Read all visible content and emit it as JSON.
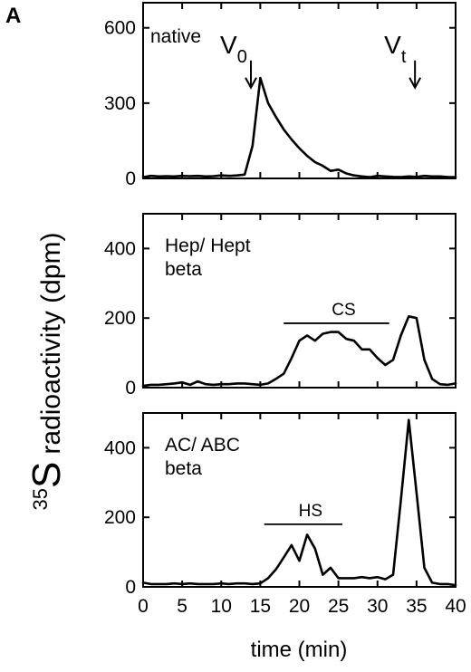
{
  "figure": {
    "panel_letter": "A",
    "ylabel_sup": "35",
    "ylabel_main": "S",
    "ylabel_rest": "radioactivity (dpm)",
    "xlabel": "time (min)"
  },
  "chart_data": [
    {
      "type": "line",
      "xlim": [
        0,
        40
      ],
      "ylim": [
        0,
        700
      ],
      "yticks": [
        0,
        300,
        600
      ],
      "xticks": [
        0,
        5,
        10,
        15,
        20,
        25,
        30,
        35,
        40
      ],
      "show_xtick_labels": false,
      "annotation_lines": [
        "native"
      ],
      "markers": [
        {
          "label": "V",
          "sub": "0",
          "x": 13.8,
          "y": 340
        },
        {
          "label": "V",
          "sub": "t",
          "x": 34.8,
          "y": 340
        }
      ],
      "brackets": [],
      "series": [
        {
          "x": [
            0,
            1,
            2,
            3,
            4,
            5,
            6,
            7,
            8,
            9,
            10,
            11,
            12,
            13,
            14,
            15,
            16,
            17,
            18,
            19,
            20,
            21,
            22,
            23,
            24,
            25,
            26,
            27,
            28,
            29,
            30,
            31,
            32,
            33,
            34,
            35,
            36,
            37,
            38,
            39,
            40
          ],
          "values": [
            5,
            10,
            8,
            9,
            8,
            10,
            9,
            10,
            8,
            9,
            12,
            10,
            12,
            15,
            130,
            400,
            300,
            245,
            195,
            155,
            120,
            90,
            65,
            50,
            30,
            35,
            20,
            12,
            8,
            5,
            10,
            8,
            6,
            5,
            8,
            6,
            10,
            8,
            8,
            5,
            5
          ]
        }
      ]
    },
    {
      "type": "line",
      "xlim": [
        0,
        40
      ],
      "ylim": [
        0,
        500
      ],
      "yticks": [
        0,
        200,
        400
      ],
      "xticks": [
        0,
        5,
        10,
        15,
        20,
        25,
        30,
        35,
        40
      ],
      "show_xtick_labels": false,
      "annotation_lines": [
        "Hep/ Hept",
        "beta"
      ],
      "markers": [],
      "brackets": [
        {
          "label": "CS",
          "x_start": 18,
          "x_end": 31.5,
          "y": 185
        }
      ],
      "series": [
        {
          "x": [
            0,
            1,
            2,
            3,
            4,
            5,
            6,
            7,
            8,
            9,
            10,
            11,
            12,
            13,
            14,
            15,
            16,
            17,
            18,
            19,
            20,
            21,
            22,
            23,
            24,
            25,
            26,
            27,
            28,
            29,
            30,
            31,
            32,
            33,
            34,
            35,
            36,
            37,
            38,
            39,
            40
          ],
          "values": [
            5,
            8,
            8,
            10,
            12,
            15,
            8,
            18,
            10,
            8,
            10,
            10,
            12,
            12,
            10,
            8,
            12,
            25,
            40,
            85,
            135,
            150,
            135,
            155,
            160,
            160,
            140,
            135,
            110,
            110,
            85,
            65,
            80,
            150,
            205,
            200,
            80,
            25,
            10,
            8,
            12
          ]
        }
      ]
    },
    {
      "type": "line",
      "xlim": [
        0,
        40
      ],
      "ylim": [
        0,
        500
      ],
      "yticks": [
        0,
        200,
        400
      ],
      "xticks": [
        0,
        5,
        10,
        15,
        20,
        25,
        30,
        35,
        40
      ],
      "show_xtick_labels": true,
      "annotation_lines": [
        "AC/ ABC",
        "beta"
      ],
      "markers": [],
      "brackets": [
        {
          "label": "HS",
          "x_start": 15.5,
          "x_end": 25.5,
          "y": 180
        }
      ],
      "series": [
        {
          "x": [
            0,
            1,
            2,
            3,
            4,
            5,
            6,
            7,
            8,
            9,
            10,
            11,
            12,
            13,
            14,
            15,
            16,
            17,
            18,
            19,
            20,
            21,
            22,
            23,
            24,
            25,
            26,
            27,
            28,
            29,
            30,
            31,
            32,
            33,
            34,
            35,
            36,
            37,
            38,
            39,
            40
          ],
          "values": [
            12,
            8,
            8,
            8,
            10,
            8,
            10,
            8,
            8,
            8,
            10,
            8,
            10,
            10,
            8,
            10,
            25,
            50,
            85,
            120,
            75,
            150,
            110,
            35,
            55,
            25,
            25,
            25,
            28,
            25,
            28,
            22,
            35,
            250,
            480,
            270,
            55,
            12,
            8,
            8,
            5
          ]
        }
      ]
    }
  ]
}
